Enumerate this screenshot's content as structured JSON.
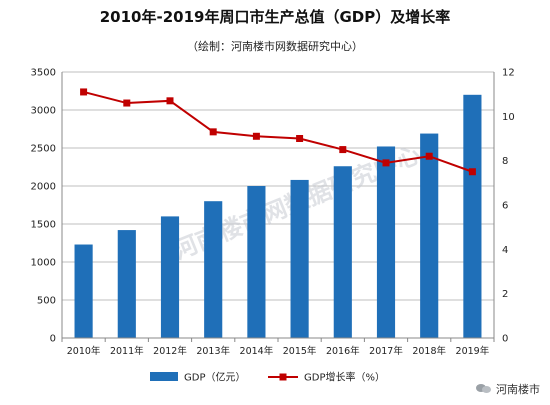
{
  "chart_data": {
    "type": "bar+line",
    "title": "2010年-2019年周口市生产总值（GDP）及增长率",
    "subtitle": "（绘制：河南楼市网数据研究中心）",
    "categories": [
      "2010年",
      "2011年",
      "2012年",
      "2013年",
      "2014年",
      "2015年",
      "2016年",
      "2017年",
      "2018年",
      "2019年"
    ],
    "series": [
      {
        "name": "GDP（亿元）",
        "type": "bar",
        "axis": "left",
        "values": [
          1230,
          1420,
          1600,
          1800,
          2000,
          2080,
          2260,
          2520,
          2690,
          3200
        ]
      },
      {
        "name": "GDP增长率（%）",
        "type": "line",
        "axis": "right",
        "values": [
          11.1,
          10.6,
          10.7,
          9.3,
          9.1,
          9.0,
          8.5,
          7.9,
          8.2,
          7.5
        ]
      }
    ],
    "ylim_left": [
      0,
      3500
    ],
    "yticks_left": [
      "0",
      "500",
      "1000",
      "1500",
      "2000",
      "2500",
      "3000",
      "3500"
    ],
    "ylim_right": [
      0,
      12
    ],
    "yticks_right": [
      "0",
      "2",
      "4",
      "6",
      "8",
      "10",
      "12"
    ],
    "grid": true,
    "legend_position": "bottom",
    "colors": {
      "bar": "#1f6fb8",
      "line": "#c00000",
      "grid": "#bfbfbf"
    }
  },
  "watermark": "河南楼市网数据研究中心",
  "brand": {
    "icon": "wechat-icon",
    "label": "河南楼市"
  }
}
